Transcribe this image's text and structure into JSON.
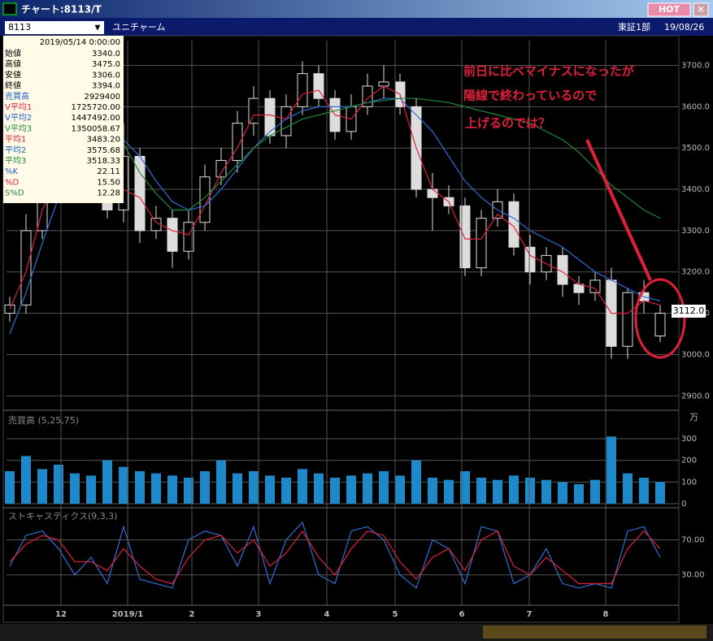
{
  "window": {
    "title": "チャート:8113/T",
    "hot": "HOT",
    "code": "8113",
    "name": "ユニチャーム",
    "market": "東証1部",
    "date": "19/08/26"
  },
  "info": {
    "datetime": "2019/05/14 0:00:00",
    "rows": [
      [
        "始値",
        "3340.0"
      ],
      [
        "高値",
        "3475.0"
      ],
      [
        "安値",
        "3306.0"
      ],
      [
        "終値",
        "3394.0"
      ],
      [
        "売買高",
        "2929400"
      ],
      [
        "V平均1",
        "1725720.00"
      ],
      [
        "V平均2",
        "1447492.00"
      ],
      [
        "V平均3",
        "1350058.67"
      ],
      [
        "平均1",
        "3483.20"
      ],
      [
        "平均2",
        "3575.68"
      ],
      [
        "平均3",
        "3518.33"
      ],
      [
        "%K",
        "22.11"
      ],
      [
        "%D",
        "15.50"
      ],
      [
        "S%D",
        "12.28"
      ]
    ]
  },
  "annotation": [
    "前日に比べマイナスになったが",
    "陽線で終わっているので",
    "上げるのでは？"
  ],
  "current_price": "3112.0",
  "chart_data": [
    {
      "type": "candlestick",
      "xlim": [
        -0.2,
        40.65
      ],
      "ylim": [
        2875,
        3760
      ],
      "yticks": [
        {
          "value": 2900,
          "label": "2900.0"
        },
        {
          "value": 3000,
          "label": "3000.0"
        },
        {
          "value": 3100,
          "label": "3100.0"
        },
        {
          "value": 3200,
          "label": "3200.0"
        },
        {
          "value": 3300,
          "label": "3300.0"
        },
        {
          "value": 3400,
          "label": "3400.0"
        },
        {
          "value": 3500,
          "label": "3500.0"
        },
        {
          "value": 3600,
          "label": "3600.0"
        },
        {
          "value": 3700,
          "label": "3700.0"
        }
      ],
      "open": [
        3100,
        3120,
        3300,
        3420,
        3480,
        3450,
        3400,
        3350,
        3480,
        3300,
        3330,
        3250,
        3320,
        3430,
        3470,
        3560,
        3620,
        3530,
        3600,
        3680,
        3620,
        3540,
        3600,
        3650,
        3660,
        3600,
        3400,
        3380,
        3360,
        3210,
        3330,
        3370,
        3260,
        3200,
        3240,
        3170,
        3150,
        3180,
        3020,
        3150,
        3045
      ],
      "high": [
        3140,
        3340,
        3450,
        3520,
        3500,
        3470,
        3420,
        3560,
        3500,
        3360,
        3350,
        3350,
        3460,
        3500,
        3590,
        3650,
        3640,
        3630,
        3710,
        3700,
        3640,
        3630,
        3680,
        3700,
        3680,
        3620,
        3440,
        3410,
        3380,
        3350,
        3400,
        3390,
        3290,
        3260,
        3260,
        3190,
        3200,
        3210,
        3160,
        3180,
        3120
      ],
      "low": [
        3080,
        3100,
        3280,
        3400,
        3420,
        3380,
        3330,
        3320,
        3270,
        3280,
        3210,
        3230,
        3300,
        3410,
        3440,
        3530,
        3510,
        3500,
        3580,
        3600,
        3520,
        3520,
        3580,
        3620,
        3580,
        3380,
        3300,
        3340,
        3190,
        3190,
        3310,
        3240,
        3170,
        3180,
        3140,
        3120,
        3130,
        2990,
        2990,
        3100,
        3030
      ],
      "close": [
        3120,
        3300,
        3420,
        3480,
        3450,
        3400,
        3350,
        3480,
        3300,
        3330,
        3250,
        3320,
        3430,
        3470,
        3560,
        3620,
        3530,
        3600,
        3680,
        3620,
        3540,
        3600,
        3650,
        3660,
        3600,
        3400,
        3380,
        3360,
        3210,
        3330,
        3370,
        3260,
        3200,
        3240,
        3170,
        3150,
        3180,
        3020,
        3150,
        3130,
        3100
      ],
      "series": [
        {
          "color": "#e0203a",
          "values": [
            3110,
            3200,
            3350,
            3440,
            3460,
            3430,
            3380,
            3400,
            3380,
            3320,
            3300,
            3290,
            3360,
            3440,
            3500,
            3580,
            3580,
            3570,
            3630,
            3640,
            3580,
            3570,
            3620,
            3650,
            3630,
            3500,
            3400,
            3370,
            3280,
            3280,
            3340,
            3310,
            3240,
            3220,
            3200,
            3170,
            3160,
            3100,
            3100,
            3130,
            3120
          ]
        },
        {
          "color": "#2f6fd8",
          "values": [
            3050,
            3150,
            3270,
            3380,
            3450,
            3490,
            3510,
            3520,
            3480,
            3420,
            3370,
            3350,
            3360,
            3400,
            3450,
            3500,
            3540,
            3570,
            3590,
            3600,
            3600,
            3600,
            3610,
            3620,
            3620,
            3580,
            3540,
            3480,
            3420,
            3380,
            3350,
            3330,
            3300,
            3280,
            3260,
            3230,
            3200,
            3180,
            3160,
            3140,
            3130
          ]
        },
        {
          "color": "#1f8a3a",
          "values": [
            null,
            null,
            null,
            null,
            null,
            null,
            null,
            3510,
            3440,
            3390,
            3350,
            3350,
            3380,
            3420,
            3460,
            3500,
            3530,
            3550,
            3570,
            3580,
            3590,
            3600,
            3610,
            3615,
            3620,
            3620,
            3615,
            3610,
            3600,
            3590,
            3580,
            3570,
            3560,
            3540,
            3520,
            3490,
            3450,
            3410,
            3380,
            3350,
            3330
          ]
        }
      ]
    },
    {
      "type": "bar",
      "title": "売買高 (5,25,75)",
      "unit": "万",
      "color": "#1e88c8",
      "xlim": [
        -0.2,
        40.65
      ],
      "ylim": [
        0,
        405
      ],
      "yticks": [
        0,
        100,
        200,
        300
      ],
      "values": [
        150,
        220,
        160,
        180,
        140,
        130,
        200,
        170,
        150,
        140,
        130,
        120,
        150,
        200,
        140,
        150,
        130,
        120,
        160,
        140,
        120,
        130,
        140,
        150,
        130,
        200,
        120,
        110,
        150,
        120,
        110,
        130,
        120,
        110,
        100,
        90,
        110,
        310,
        140,
        120,
        100
      ]
    },
    {
      "type": "line",
      "title": "ストキャスティクス(9,3,3)",
      "xlim": [
        -0.2,
        40.65
      ],
      "ylim": [
        0,
        102
      ],
      "yticks": [
        {
          "value": 30,
          "label": "30.00"
        },
        {
          "value": 70,
          "label": "70.00"
        }
      ],
      "xticks": [
        {
          "value": 3.15,
          "label": "12"
        },
        {
          "value": 7.25,
          "label": "2019/1"
        },
        {
          "value": 11.2,
          "label": "2"
        },
        {
          "value": 15.3,
          "label": "3"
        },
        {
          "value": 19.5,
          "label": "4"
        },
        {
          "value": 23.7,
          "label": "5"
        },
        {
          "value": 27.8,
          "label": "6"
        },
        {
          "value": 31.95,
          "label": "7"
        },
        {
          "value": 36.65,
          "label": "8"
        }
      ],
      "series": [
        {
          "color": "#2f6fd8",
          "values": [
            40,
            75,
            80,
            60,
            30,
            50,
            20,
            85,
            25,
            20,
            15,
            70,
            80,
            75,
            40,
            85,
            20,
            70,
            90,
            30,
            20,
            80,
            85,
            70,
            30,
            15,
            70,
            60,
            20,
            85,
            80,
            20,
            30,
            60,
            20,
            15,
            20,
            15,
            80,
            85,
            50
          ]
        },
        {
          "color": "#e0203a",
          "values": [
            45,
            65,
            75,
            70,
            45,
            45,
            35,
            60,
            40,
            25,
            20,
            50,
            70,
            75,
            55,
            70,
            40,
            55,
            80,
            50,
            30,
            60,
            80,
            75,
            45,
            25,
            50,
            60,
            35,
            70,
            80,
            40,
            30,
            50,
            35,
            20,
            20,
            20,
            60,
            80,
            60
          ]
        }
      ]
    }
  ]
}
